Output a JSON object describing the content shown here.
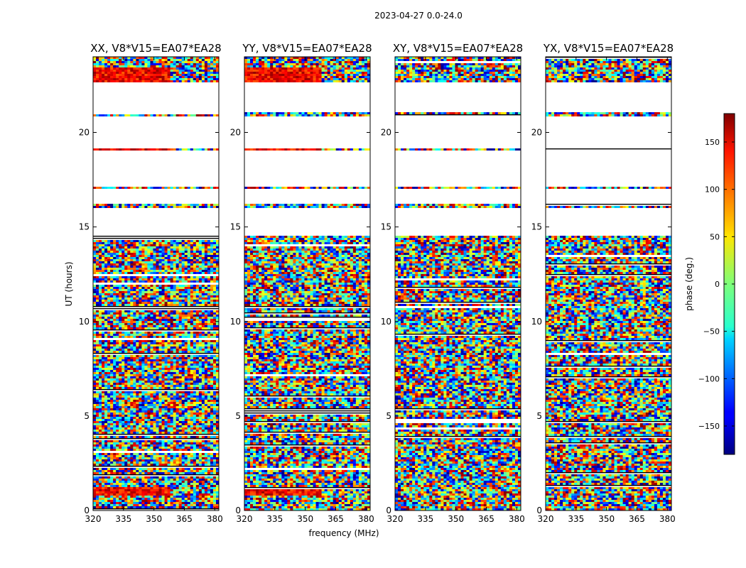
{
  "figure": {
    "suptitle": "2023-04-27 0.0-24.0",
    "xlabel": "frequency (MHz)",
    "ylabel": "UT (hours)"
  },
  "chart_data": {
    "type": "heatmap",
    "title": "2023-04-27 0.0-24.0",
    "xlabel": "frequency (MHz)",
    "ylabel": "UT (hours)",
    "xlim": [
      320,
      382
    ],
    "ylim": [
      0,
      24
    ],
    "xticks": [
      320,
      335,
      350,
      365,
      380
    ],
    "yticks": [
      0,
      5,
      10,
      15,
      20
    ],
    "panels": [
      {
        "name": "XX",
        "title": "XX, V8*V15=EA07*EA28"
      },
      {
        "name": "YY",
        "title": "YY, V8*V15=EA07*EA28"
      },
      {
        "name": "XY",
        "title": "XY, V8*V15=EA07*EA28"
      },
      {
        "name": "YX",
        "title": "YX, V8*V15=EA07*EA28"
      }
    ],
    "colorbar": {
      "label": "phase (deg.)",
      "range": [
        -180,
        180
      ],
      "ticks": [
        150,
        100,
        50,
        0,
        -50,
        -100,
        -150
      ],
      "tick_labels": [
        "150",
        "100",
        "50",
        "0",
        "−50",
        "−100",
        "−150"
      ],
      "colormap": "jet"
    },
    "data_gaps_hours": [
      [
        21.1,
        22.7
      ],
      [
        19.1,
        20.9
      ],
      [
        17.1,
        19.0
      ],
      [
        16.2,
        17.0
      ],
      [
        14.55,
        16.0
      ]
    ]
  }
}
